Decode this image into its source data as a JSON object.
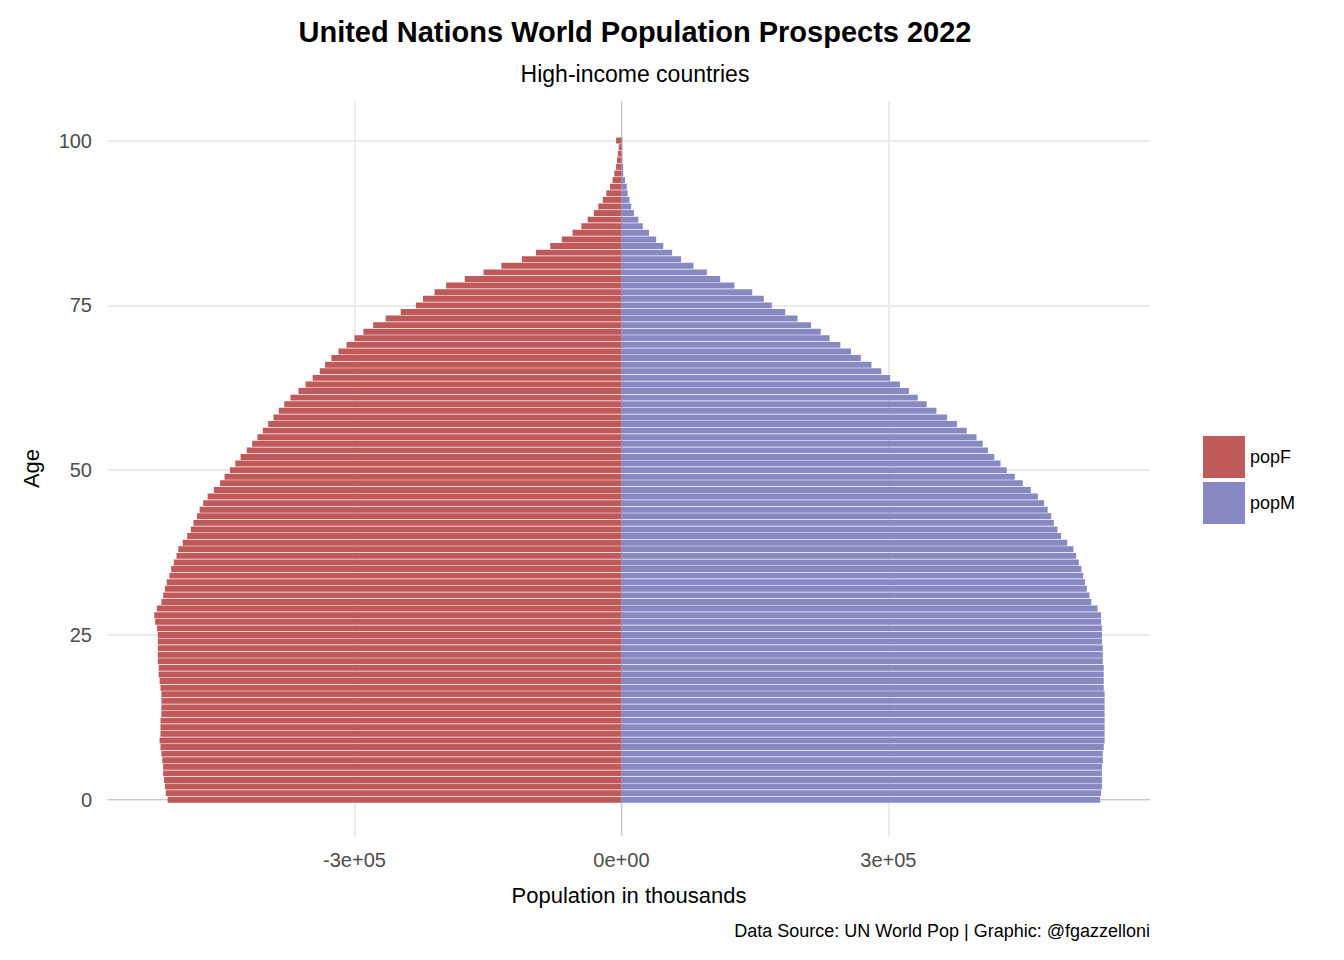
{
  "chart_data": {
    "type": "bar",
    "orientation": "horizontal",
    "title": "United Nations World Population Prospects 2022",
    "subtitle": "High-income countries",
    "x_label": "Population in thousands",
    "y_label": "Age",
    "caption": "Data Source: UN World Pop | Graphic: @fgazzelloni",
    "categories": [
      0,
      1,
      2,
      3,
      4,
      5,
      6,
      7,
      8,
      9,
      10,
      11,
      12,
      13,
      14,
      15,
      16,
      17,
      18,
      19,
      20,
      21,
      22,
      23,
      24,
      25,
      26,
      27,
      28,
      29,
      30,
      31,
      32,
      33,
      34,
      35,
      36,
      37,
      38,
      39,
      40,
      41,
      42,
      43,
      44,
      45,
      46,
      47,
      48,
      49,
      50,
      51,
      52,
      53,
      54,
      55,
      56,
      57,
      58,
      59,
      60,
      61,
      62,
      63,
      64,
      65,
      66,
      67,
      68,
      69,
      70,
      71,
      72,
      73,
      74,
      75,
      76,
      77,
      78,
      79,
      80,
      81,
      82,
      83,
      84,
      85,
      86,
      87,
      88,
      89,
      90,
      91,
      92,
      93,
      94,
      95,
      96,
      97,
      98,
      99,
      100
    ],
    "series": [
      {
        "name": "popF",
        "color": "#c0595a",
        "values": [
          -510000,
          -512000,
          -513000,
          -514000,
          -515000,
          -515000,
          -516000,
          -517000,
          -518000,
          -519000,
          -518000,
          -518000,
          -518000,
          -517000,
          -517000,
          -517000,
          -517000,
          -518000,
          -519000,
          -520000,
          -520000,
          -521000,
          -521000,
          -521000,
          -521000,
          -521000,
          -522000,
          -524000,
          -525000,
          -522000,
          -517000,
          -515000,
          -513000,
          -511000,
          -508000,
          -506000,
          -503000,
          -500000,
          -498000,
          -493000,
          -488000,
          -484000,
          -481000,
          -477000,
          -474000,
          -470000,
          -465000,
          -458000,
          -451000,
          -446000,
          -440000,
          -434000,
          -428000,
          -421000,
          -415000,
          -409000,
          -403000,
          -397000,
          -391000,
          -385000,
          -379000,
          -372000,
          -363000,
          -355000,
          -347000,
          -339000,
          -333000,
          -326000,
          -318000,
          -309000,
          -300000,
          -290000,
          -279000,
          -265000,
          -248000,
          -231000,
          -223000,
          -210000,
          -197000,
          -176000,
          -155000,
          -135000,
          -112000,
          -96000,
          -80000,
          -67000,
          -55000,
          -45000,
          -38000,
          -31000,
          -26000,
          -21000,
          -17000,
          -13000,
          -10000,
          -8000,
          -6000,
          -5000,
          -4000,
          -3000,
          -6000
        ]
      },
      {
        "name": "popM",
        "color": "#8888c2",
        "values": [
          538000,
          539000,
          540000,
          540000,
          540000,
          540000,
          541000,
          541000,
          542000,
          543000,
          543000,
          543000,
          543000,
          543000,
          543000,
          543000,
          543000,
          542000,
          542000,
          542000,
          542000,
          541000,
          541000,
          541000,
          540000,
          540000,
          540000,
          539000,
          539000,
          535000,
          528000,
          526000,
          523000,
          521000,
          519000,
          517000,
          514000,
          511000,
          508000,
          501000,
          494000,
          490000,
          486000,
          483000,
          479000,
          475000,
          468000,
          460000,
          451000,
          442000,
          433000,
          426000,
          419000,
          412000,
          406000,
          399000,
          388000,
          377000,
          366000,
          354000,
          343000,
          333000,
          323000,
          313000,
          302000,
          292000,
          281000,
          269000,
          258000,
          246000,
          234000,
          224000,
          213000,
          198000,
          184000,
          169000,
          160000,
          147000,
          127000,
          111000,
          96000,
          81000,
          67000,
          57000,
          47000,
          39000,
          31000,
          24000,
          19000,
          14000,
          11000,
          9000,
          7000,
          6000,
          4000,
          2000,
          2000,
          1000,
          1000,
          1000,
          1000
        ]
      }
    ],
    "xlim": [
      -577000,
      594000
    ],
    "xticks": [
      {
        "value": -300000,
        "label": "-3e+05"
      },
      {
        "value": 0,
        "label": "0e+00"
      },
      {
        "value": 300000,
        "label": "3e+05"
      }
    ],
    "ylim": [
      -5.5,
      106
    ],
    "yticks": [
      0,
      25,
      50,
      75,
      100
    ],
    "grid": true,
    "legend": "right"
  }
}
